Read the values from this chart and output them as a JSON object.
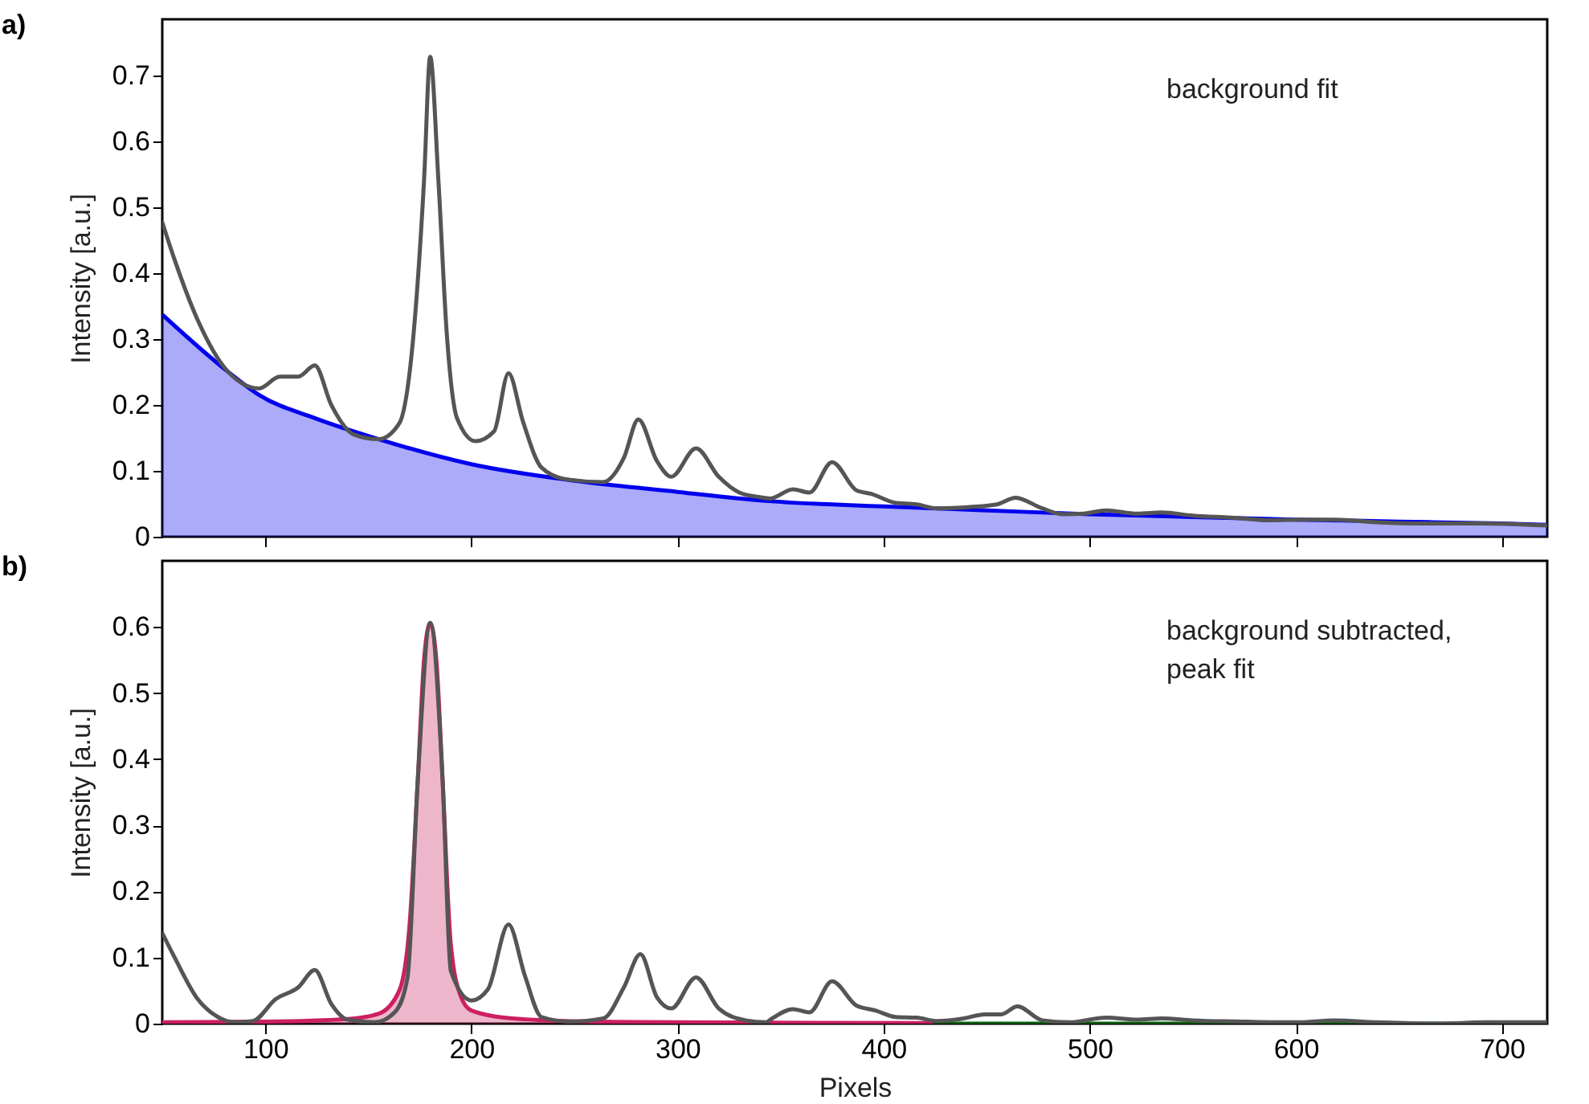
{
  "chart_data": [
    {
      "type": "line",
      "title": "a)",
      "ylabel": "Intensity [a.u.]",
      "xlim": [
        50,
        722
      ],
      "ylim": [
        0,
        0.785
      ],
      "xticks": [
        100,
        200,
        300,
        400,
        500,
        600,
        700
      ],
      "yticks": [
        0,
        0.1,
        0.2,
        0.3,
        0.4,
        0.5,
        0.6,
        0.7
      ],
      "tick_labels": "y",
      "annotations": [
        "background fit"
      ],
      "series": [
        {
          "type": "area",
          "color": "#0000ee",
          "x": [
            50,
            82,
            97,
            124,
            155,
            200,
            250,
            300,
            340,
            400,
            450,
            500,
            550,
            600,
            650,
            700,
            722
          ],
          "values": [
            0.337,
            0.25,
            0.215,
            0.18,
            0.148,
            0.11,
            0.085,
            0.068,
            0.055,
            0.046,
            0.04,
            0.034,
            0.03,
            0.026,
            0.023,
            0.02,
            0.018
          ]
        },
        {
          "color": "#555555",
          "x": [
            50,
            56,
            67,
            82,
            97,
            107,
            116,
            124,
            132,
            143,
            155,
            165,
            172,
            177,
            180,
            184,
            188,
            193,
            202,
            211,
            218,
            225,
            234,
            246,
            264,
            274,
            281,
            290,
            297,
            309,
            320,
            330,
            340,
            345,
            356,
            364,
            375,
            387,
            394,
            405,
            416,
            426,
            442,
            455,
            464,
            477,
            487,
            497,
            508,
            523,
            535,
            550,
            569,
            588,
            604,
            619,
            639,
            664,
            690,
            722
          ],
          "values": [
            0.477,
            0.42,
            0.33,
            0.25,
            0.225,
            0.243,
            0.243,
            0.26,
            0.2,
            0.155,
            0.148,
            0.172,
            0.31,
            0.54,
            0.728,
            0.54,
            0.31,
            0.18,
            0.145,
            0.16,
            0.248,
            0.175,
            0.105,
            0.087,
            0.083,
            0.12,
            0.178,
            0.115,
            0.091,
            0.134,
            0.091,
            0.067,
            0.06,
            0.058,
            0.072,
            0.067,
            0.113,
            0.07,
            0.065,
            0.052,
            0.049,
            0.043,
            0.045,
            0.049,
            0.059,
            0.043,
            0.034,
            0.035,
            0.04,
            0.035,
            0.037,
            0.032,
            0.029,
            0.025,
            0.026,
            0.026,
            0.022,
            0.02,
            0.02,
            0.017
          ]
        }
      ]
    },
    {
      "type": "line",
      "title": "b)",
      "xlabel": "Pixels",
      "ylabel": "Intensity [a.u.]",
      "xlim": [
        50,
        722
      ],
      "ylim": [
        0,
        0.7
      ],
      "xticks": [
        100,
        200,
        300,
        400,
        500,
        600,
        700
      ],
      "yticks": [
        0,
        0.1,
        0.2,
        0.3,
        0.4,
        0.5,
        0.6
      ],
      "annotations": [
        "background subtracted,\npeak fit"
      ],
      "series": [
        {
          "type": "area",
          "color": "#cc2060",
          "x": [
            50,
            100,
            140,
            155,
            165,
            170,
            174,
            177,
            180,
            183,
            186,
            190,
            195,
            200,
            220,
            260,
            300,
            425
          ],
          "values": [
            0.002,
            0.003,
            0.007,
            0.015,
            0.05,
            0.15,
            0.37,
            0.55,
            0.606,
            0.55,
            0.37,
            0.12,
            0.04,
            0.02,
            0.008,
            0.003,
            0.002,
            0.001
          ]
        },
        {
          "color": "#006400",
          "x": [
            425,
            722
          ],
          "values": [
            0,
            0
          ]
        },
        {
          "color": "#555555",
          "x": [
            50,
            56,
            67,
            77,
            85,
            94,
            105,
            116,
            124,
            132,
            140,
            153,
            163,
            169,
            174,
            180,
            186,
            190,
            200,
            208,
            218,
            226,
            234,
            248,
            264,
            274,
            282,
            290,
            297,
            309,
            320,
            333,
            343,
            345,
            356,
            364,
            375,
            387,
            396,
            406,
            416,
            426,
            439,
            449,
            457,
            465,
            477,
            490,
            508,
            523,
            535,
            550,
            576,
            600,
            619,
            639,
            669,
            692,
            722
          ],
          "values": [
            0.137,
            0.1,
            0.038,
            0.01,
            0.002,
            0.004,
            0.037,
            0.055,
            0.081,
            0.03,
            0.006,
            0.002,
            0.018,
            0.07,
            0.37,
            0.606,
            0.37,
            0.08,
            0.035,
            0.052,
            0.15,
            0.072,
            0.01,
            0.003,
            0.008,
            0.055,
            0.105,
            0.04,
            0.023,
            0.07,
            0.023,
            0.005,
            0.002,
            0.006,
            0.022,
            0.017,
            0.064,
            0.027,
            0.02,
            0.01,
            0.009,
            0.004,
            0.008,
            0.014,
            0.014,
            0.026,
            0.005,
            0.002,
            0.009,
            0.006,
            0.008,
            0.005,
            0.003,
            0.002,
            0.005,
            0.002,
            0,
            0.002,
            0.002
          ]
        }
      ]
    }
  ]
}
